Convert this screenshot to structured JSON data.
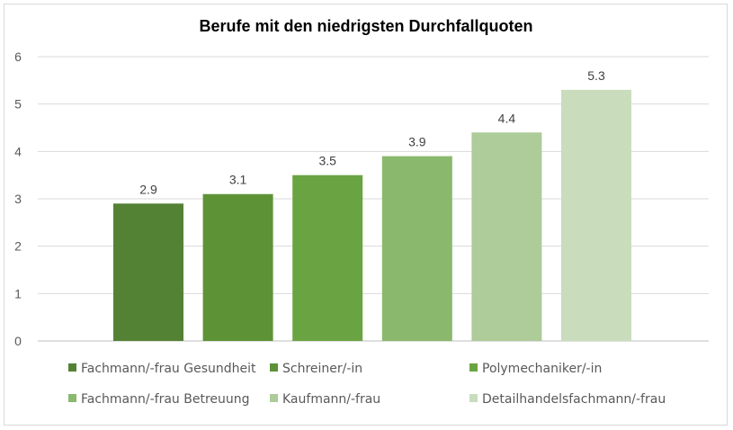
{
  "chart_data": {
    "type": "bar",
    "title": "Berufe mit den niedrigsten Durchfallquoten",
    "xlabel": "",
    "ylabel": "",
    "ylim": [
      0,
      6
    ],
    "yticks": [
      "0",
      "1",
      "2",
      "3",
      "4",
      "5",
      "6"
    ],
    "grid": true,
    "legend_position": "bottom",
    "series": [
      {
        "name": "Fachmann/-frau Gesundheit",
        "value": 2.9,
        "label": "2.9",
        "color": "#548235"
      },
      {
        "name": "Schreiner/-in",
        "value": 3.1,
        "label": "3.1",
        "color": "#5e9237"
      },
      {
        "name": "Polymechaniker/-in",
        "value": 3.5,
        "label": "3.5",
        "color": "#6aa442"
      },
      {
        "name": "Fachmann/-frau Betreuung",
        "value": 3.9,
        "label": "3.9",
        "color": "#8ab96d"
      },
      {
        "name": "Kaufmann/-frau",
        "value": 4.4,
        "label": "4.4",
        "color": "#aecb9a"
      },
      {
        "name": "Detailhandelsfachmann/-frau",
        "value": 5.3,
        "label": "5.3",
        "color": "#c9ddbd"
      }
    ]
  }
}
